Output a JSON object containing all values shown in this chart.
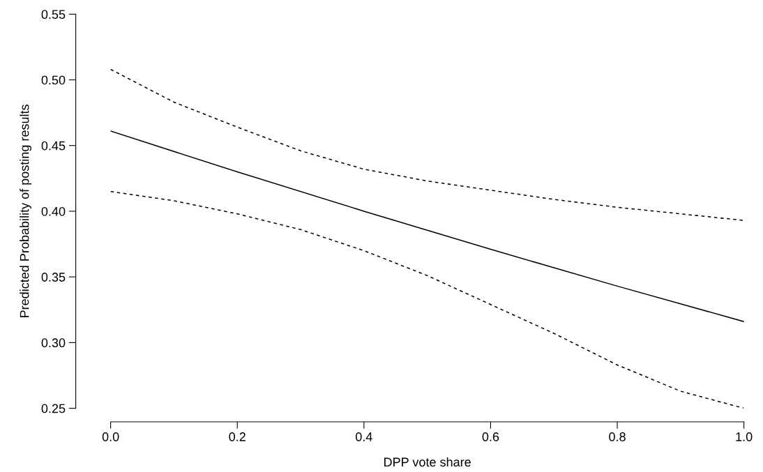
{
  "chart_data": {
    "type": "line",
    "xlabel": "DPP vote share",
    "ylabel": "Predicted Probability of posting results",
    "xlim": [
      0,
      1
    ],
    "xticks": [
      {
        "value": 0,
        "label": "0.0"
      },
      0.2,
      0.4,
      0.6,
      0.8,
      {
        "value": 1,
        "label": "1.0"
      }
    ],
    "ylim": [
      0.25,
      0.55
    ],
    "yticks": [
      0.25,
      {
        "value": 0.3,
        "label": "0.30"
      },
      0.35,
      {
        "value": 0.4,
        "label": "0.40"
      },
      0.45,
      {
        "value": 0.5,
        "label": "0.50"
      },
      0.55
    ],
    "grid": false,
    "legend": false,
    "series": [
      {
        "color": "#000000",
        "line_style": "solid",
        "x": [
          0,
          0.2,
          0.4,
          0.6,
          0.8,
          1.0
        ],
        "values": [
          0.461,
          0.43,
          0.4,
          0.371,
          0.343,
          0.316
        ]
      },
      {
        "color": "#000000",
        "line_style": "dashed",
        "x": [
          0,
          0.1,
          0.2,
          0.3,
          0.4,
          0.5,
          0.6,
          0.7,
          0.8,
          0.9,
          1.0
        ],
        "values": [
          0.508,
          0.483,
          0.464,
          0.446,
          0.432,
          0.423,
          0.416,
          0.409,
          0.403,
          0.398,
          0.393
        ]
      },
      {
        "color": "#000000",
        "line_style": "dashed",
        "x": [
          0,
          0.1,
          0.2,
          0.3,
          0.4,
          0.5,
          0.6,
          0.7,
          0.8,
          0.9,
          1.0
        ],
        "values": [
          0.415,
          0.408,
          0.398,
          0.386,
          0.37,
          0.351,
          0.329,
          0.307,
          0.283,
          0.263,
          0.25
        ]
      }
    ]
  }
}
